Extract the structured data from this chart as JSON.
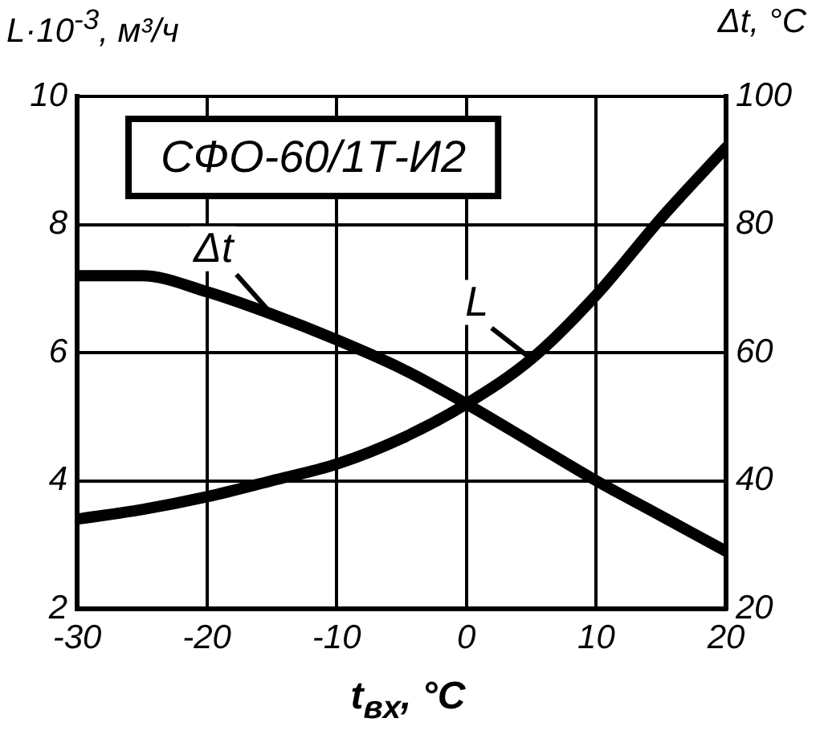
{
  "chart_data": {
    "type": "line",
    "title": "СФО-60/1Т-И2",
    "xlabel": "t$_{вх}$, °C",
    "ylabel": "L·10$^{-3}$, м³/ч",
    "y2label": "Δt, °C",
    "x": [
      -30,
      -25,
      -20,
      -15,
      -10,
      -5,
      0,
      5,
      10,
      15,
      20
    ],
    "series": [
      {
        "name": "L",
        "color": "#000000",
        "values": [
          3.4,
          3.55,
          3.75,
          4.0,
          4.26,
          4.66,
          5.2,
          5.9,
          6.9,
          8.1,
          9.2
        ]
      },
      {
        "name": "Δt",
        "color": "#000000",
        "axis": "y2",
        "values": [
          72,
          72,
          69.5,
          66,
          62,
          57.5,
          52,
          46,
          40,
          34.5,
          29
        ]
      }
    ],
    "xlim": [
      -30,
      20
    ],
    "xticks": [
      -30,
      -20,
      -10,
      0,
      10,
      20
    ],
    "ylim": [
      2,
      10
    ],
    "yticks": [
      2,
      4,
      6,
      8,
      10
    ],
    "y2lim": [
      20,
      100
    ],
    "y2ticks": [
      20,
      40,
      60,
      80,
      100
    ],
    "grid": true,
    "legend": false,
    "marker": "none",
    "line_style": "solid"
  }
}
